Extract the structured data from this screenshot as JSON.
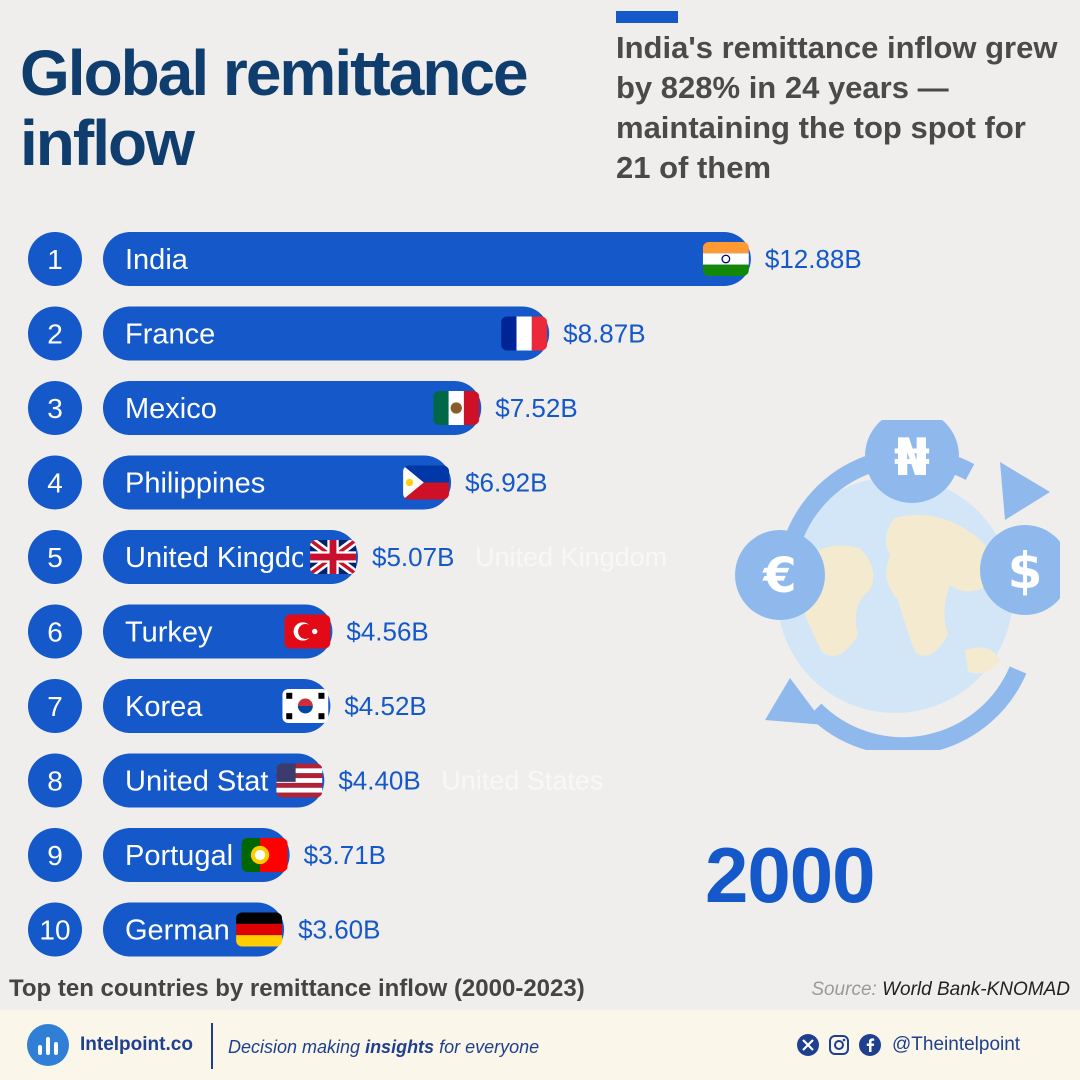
{
  "title": "Global remittance inflow",
  "subtitle": "India's remittance inflow grew by 828% in 24 years — maintaining the top spot for 21 of them",
  "year": "2000",
  "colors": {
    "bar": "#1458c9",
    "value_text": "#1458c9",
    "title": "#0f3d6e",
    "background": "#efeeec"
  },
  "chart_data": {
    "type": "bar",
    "orientation": "horizontal",
    "ranks": [
      "1",
      "2",
      "3",
      "4",
      "5",
      "6",
      "7",
      "8",
      "9",
      "10"
    ],
    "categories": [
      "India",
      "France",
      "Mexico",
      "Philippines",
      "United Kingdom",
      "Turkey",
      "Korea",
      "United States",
      "Portugal",
      "Germany"
    ],
    "values": [
      12.88,
      8.87,
      7.52,
      6.92,
      5.07,
      4.56,
      4.52,
      4.4,
      3.71,
      3.6
    ],
    "value_labels": [
      "$12.88B",
      "$8.87B",
      "$7.52B",
      "$6.92B",
      "$5.07B",
      "$4.56B",
      "$4.52B",
      "$4.40B",
      "$3.71B",
      "$3.60B"
    ],
    "flags": [
      "india-flag",
      "france-flag",
      "mexico-flag",
      "philippines-flag",
      "uk-flag",
      "turkey-flag",
      "korea-flag",
      "usa-flag",
      "portugal-flag",
      "germany-flag"
    ],
    "ghost_labels": [
      "United Kingdom",
      "United States"
    ],
    "unit": "USD billions"
  },
  "caption": "Top ten countries by remittance inflow (2000-2023)",
  "source": {
    "label": "Source:",
    "value": "World Bank-KNOMAD"
  },
  "footer": {
    "brand": "Intelpoint.co",
    "tagline_pre": "Decision making ",
    "tagline_bold": "insights",
    "tagline_post": " for everyone",
    "handle": "@Theintelpoint",
    "social_icons": [
      "x-icon",
      "instagram-icon",
      "facebook-icon"
    ]
  },
  "illustration": {
    "icons": [
      "globe-icon",
      "naira-icon",
      "euro-icon",
      "dollar-icon",
      "circular-arrows-icon"
    ]
  }
}
